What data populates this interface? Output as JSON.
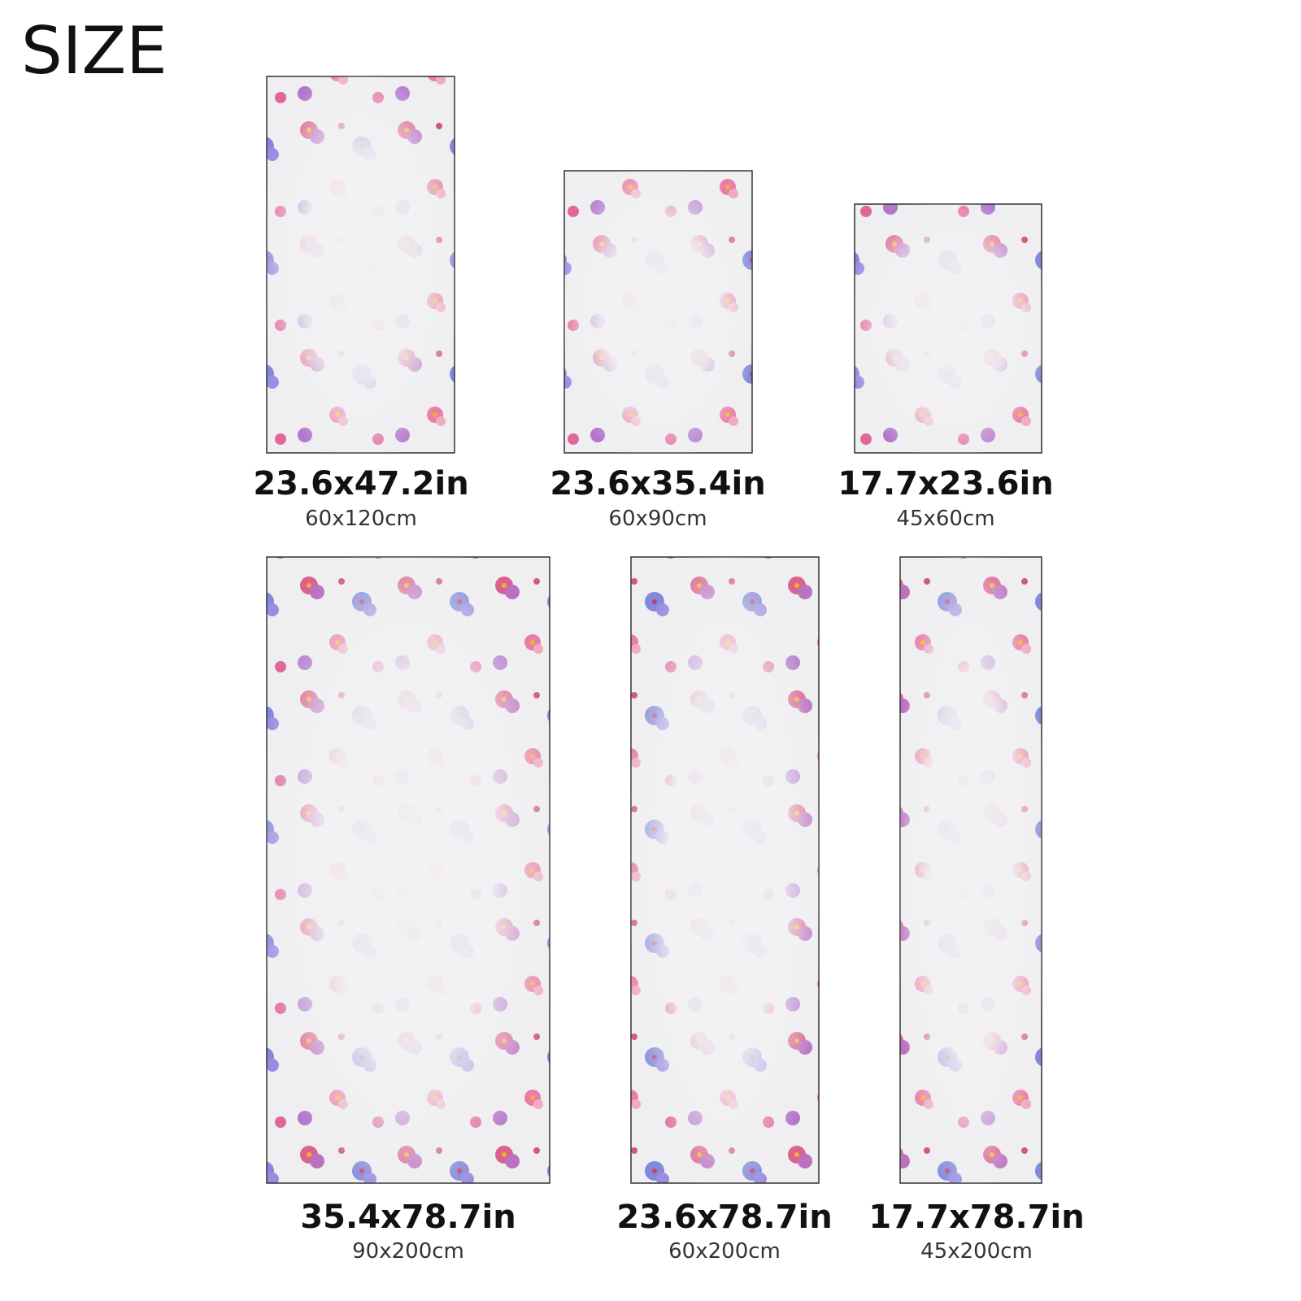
{
  "header": {
    "title": "SIZE"
  },
  "sizes": [
    {
      "inches": "23.6x47.2in",
      "cm": "60x120cm"
    },
    {
      "inches": "23.6x35.4in",
      "cm": "60x90cm"
    },
    {
      "inches": "17.7x23.6in",
      "cm": "45x60cm"
    },
    {
      "inches": "35.4x78.7in",
      "cm": "90x200cm"
    },
    {
      "inches": "23.6x78.7in",
      "cm": "60x200cm"
    },
    {
      "inches": "17.7x78.7in",
      "cm": "45x200cm"
    }
  ]
}
